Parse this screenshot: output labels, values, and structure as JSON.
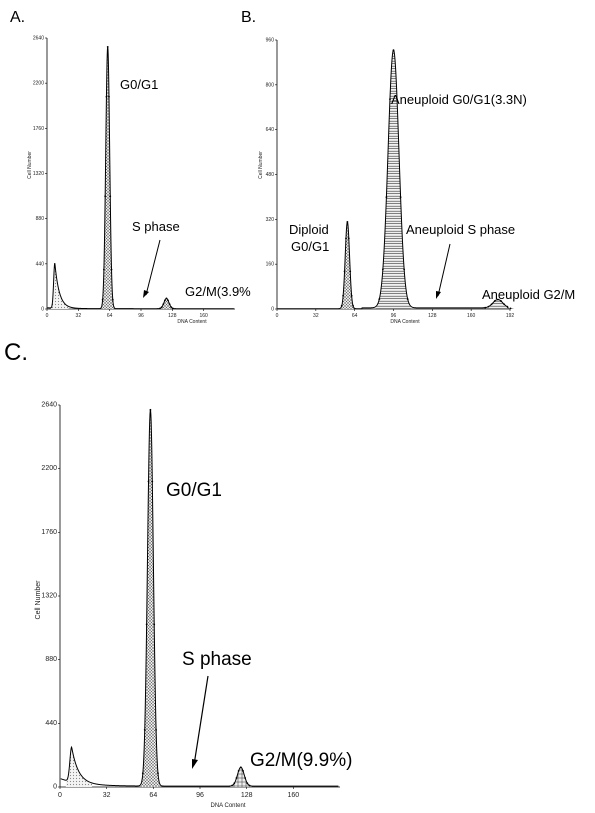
{
  "chart_data": [
    {
      "type": "area",
      "panel_label": "A.",
      "xlabel": "DNA Content",
      "ylabel": "Cell Number",
      "xlim": [
        0,
        192
      ],
      "ylim": [
        0,
        2640
      ],
      "x_ticks": [
        "0",
        "32",
        "64",
        "96",
        "128",
        "160"
      ],
      "y_ticks": [
        "0",
        "440",
        "880",
        "1320",
        "1760",
        "2200",
        "2640"
      ],
      "peaks": [
        {
          "name": "debris",
          "center": 8,
          "height": 440,
          "width": 2.5
        },
        {
          "name": "G0/G1",
          "center": 62,
          "height": 2550,
          "width": 2
        },
        {
          "name": "G2/M",
          "center": 122,
          "height": 100,
          "width": 2.5
        }
      ],
      "annotations": {
        "g0g1": "G0/G1",
        "s_phase": "S phase",
        "g2m": "G2/M(3.9%"
      }
    },
    {
      "type": "area",
      "panel_label": "B.",
      "xlabel": "DNA Content",
      "ylabel": "Cell Number",
      "xlim": [
        0,
        192
      ],
      "ylim": [
        0,
        960
      ],
      "x_ticks": [
        "0",
        "32",
        "64",
        "96",
        "128",
        "160",
        "192"
      ],
      "y_ticks": [
        "0",
        "160",
        "320",
        "480",
        "640",
        "800",
        "960"
      ],
      "peaks": [
        {
          "name": "Diploid G0/G1",
          "center": 58,
          "height": 310,
          "width": 1.8
        },
        {
          "name": "Aneuploid G0/G1(3.3N)",
          "center": 96,
          "height": 920,
          "width": 4.5
        },
        {
          "name": "Aneuploid G2/M",
          "center": 182,
          "height": 30,
          "width": 4
        }
      ],
      "annotations": {
        "diploid_line1": "Diploid",
        "diploid_line2": "G0/G1",
        "aneuploid_g0g1": "Aneuploid  G0/G1(3.3N)",
        "aneuploid_s": "Aneuploid S phase",
        "aneuploid_g2m": "Aneuploid G2/M"
      }
    },
    {
      "type": "area",
      "panel_label": "C.",
      "xlabel": "DNA Content",
      "ylabel": "Cell Number",
      "xlim": [
        0,
        192
      ],
      "ylim": [
        0,
        2640
      ],
      "x_ticks": [
        "0",
        "32",
        "64",
        "96",
        "128",
        "160"
      ],
      "y_ticks": [
        "0",
        "440",
        "880",
        "1320",
        "1760",
        "2200",
        "2640"
      ],
      "peaks": [
        {
          "name": "debris",
          "center": 8,
          "height": 240,
          "width": 2.5
        },
        {
          "name": "G0/G1",
          "center": 62,
          "height": 2600,
          "width": 2
        },
        {
          "name": "G2/M",
          "center": 124,
          "height": 130,
          "width": 2.3
        }
      ],
      "annotations": {
        "g0g1": "G0/G1",
        "s_phase": "S phase",
        "g2m": "G2/M(9.9%)"
      }
    }
  ]
}
